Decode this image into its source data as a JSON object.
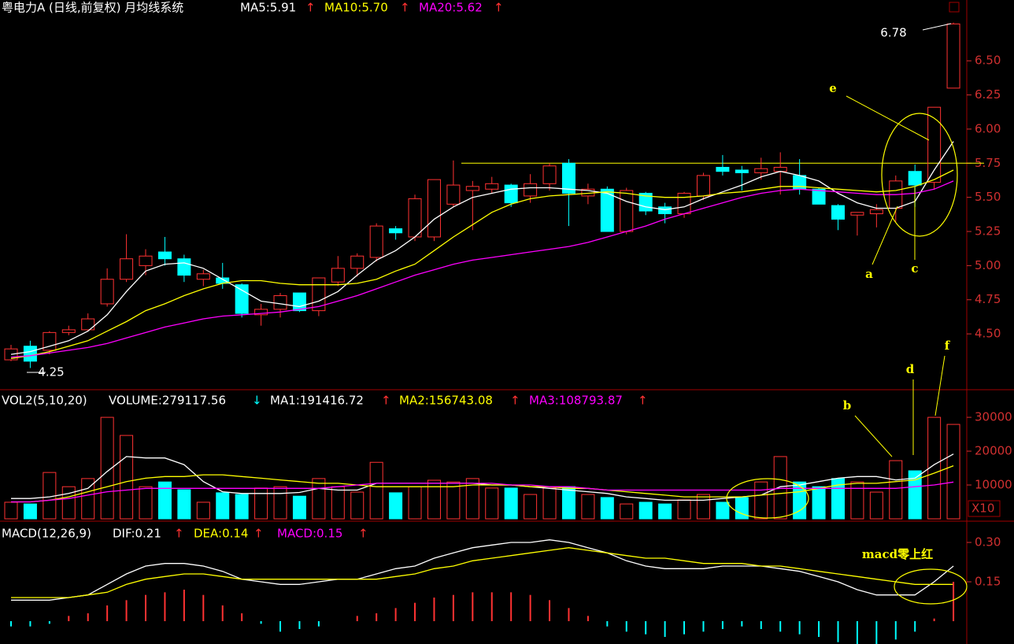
{
  "chart_data": [
    {
      "type": "candlestick",
      "title": "粤电力A (日线,前复权) 月均线系统",
      "up_color": "#ff3232",
      "down_color": "#00ffff",
      "open": [
        4.31,
        4.41,
        4.38,
        4.51,
        4.53,
        4.72,
        4.9,
        5.0,
        5.1,
        5.05,
        4.9,
        4.91,
        4.86,
        4.64,
        4.68,
        4.8,
        4.67,
        4.88,
        4.98,
        5.06,
        5.27,
        5.21,
        5.21,
        5.45,
        5.55,
        5.56,
        5.59,
        5.51,
        5.6,
        5.75,
        5.51,
        5.56,
        5.25,
        5.53,
        5.43,
        5.38,
        5.51,
        5.72,
        5.7,
        5.68,
        5.69,
        5.66,
        5.56,
        5.44,
        5.37,
        5.38,
        5.42,
        5.69,
        5.61,
        6.3
      ],
      "high": [
        4.42,
        4.45,
        4.52,
        4.56,
        4.65,
        4.98,
        5.23,
        5.12,
        5.21,
        5.08,
        4.97,
        5.02,
        4.87,
        4.72,
        4.8,
        4.8,
        4.91,
        5.07,
        5.09,
        5.31,
        5.29,
        5.52,
        5.63,
        5.77,
        5.62,
        5.65,
        5.6,
        5.67,
        5.75,
        5.78,
        5.6,
        5.58,
        5.57,
        5.54,
        5.46,
        5.54,
        5.68,
        5.81,
        5.73,
        5.79,
        5.83,
        5.78,
        5.57,
        5.45,
        5.39,
        5.45,
        5.66,
        5.74,
        6.16,
        6.78
      ],
      "low": [
        4.3,
        4.25,
        4.35,
        4.49,
        4.52,
        4.7,
        4.88,
        4.93,
        5.0,
        4.88,
        4.85,
        4.83,
        4.62,
        4.56,
        4.62,
        4.66,
        4.63,
        4.85,
        4.92,
        5.03,
        5.19,
        5.18,
        5.18,
        5.43,
        5.26,
        5.53,
        5.43,
        5.46,
        5.55,
        5.29,
        5.45,
        5.25,
        5.23,
        5.37,
        5.31,
        5.35,
        5.48,
        5.66,
        5.55,
        5.63,
        5.52,
        5.52,
        5.45,
        5.26,
        5.22,
        5.28,
        5.32,
        5.43,
        5.56,
        6.3
      ],
      "close": [
        4.39,
        4.3,
        4.51,
        4.53,
        4.61,
        4.9,
        5.05,
        5.07,
        5.05,
        4.93,
        4.94,
        4.87,
        4.65,
        4.68,
        4.78,
        4.67,
        4.91,
        4.98,
        5.07,
        5.29,
        5.24,
        5.49,
        5.63,
        5.59,
        5.58,
        5.6,
        5.46,
        5.6,
        5.73,
        5.53,
        5.56,
        5.25,
        5.55,
        5.4,
        5.38,
        5.53,
        5.66,
        5.69,
        5.68,
        5.71,
        5.72,
        5.56,
        5.45,
        5.34,
        5.39,
        5.41,
        5.62,
        5.59,
        6.16,
        6.77
      ],
      "series": [
        {
          "name": "MA5:5.91",
          "trend": "↑",
          "trend_color": "#ff3232",
          "color": "#ffffff",
          "values": [
            4.35,
            4.37,
            4.41,
            4.45,
            4.52,
            4.64,
            4.81,
            4.96,
            5.01,
            5.02,
            4.98,
            4.9,
            4.82,
            4.74,
            4.72,
            4.7,
            4.74,
            4.81,
            4.93,
            5.04,
            5.11,
            5.21,
            5.34,
            5.43,
            5.5,
            5.53,
            5.56,
            5.57,
            5.57,
            5.56,
            5.55,
            5.53,
            5.47,
            5.43,
            5.41,
            5.43,
            5.49,
            5.54,
            5.59,
            5.65,
            5.69,
            5.66,
            5.62,
            5.53,
            5.46,
            5.42,
            5.42,
            5.47,
            5.7,
            5.91
          ]
        },
        {
          "name": "MA10:5.70",
          "trend": "↑",
          "trend_color": "#ff3232",
          "color": "#ffff00",
          "values": [
            4.32,
            4.34,
            4.37,
            4.41,
            4.45,
            4.52,
            4.59,
            4.67,
            4.72,
            4.78,
            4.83,
            4.87,
            4.89,
            4.89,
            4.87,
            4.86,
            4.86,
            4.86,
            4.87,
            4.9,
            4.96,
            5.01,
            5.11,
            5.21,
            5.3,
            5.39,
            5.45,
            5.49,
            5.51,
            5.52,
            5.53,
            5.54,
            5.53,
            5.51,
            5.5,
            5.5,
            5.51,
            5.53,
            5.54,
            5.56,
            5.58,
            5.58,
            5.57,
            5.56,
            5.55,
            5.54,
            5.55,
            5.58,
            5.63,
            5.7
          ]
        },
        {
          "name": "MA20:5.62",
          "trend": "↑",
          "trend_color": "#ff3232",
          "color": "#ff00ff",
          "values": [
            4.33,
            4.34,
            4.36,
            4.38,
            4.4,
            4.43,
            4.47,
            4.51,
            4.55,
            4.58,
            4.61,
            4.63,
            4.64,
            4.65,
            4.66,
            4.68,
            4.7,
            4.74,
            4.78,
            4.83,
            4.88,
            4.93,
            4.97,
            5.01,
            5.04,
            5.06,
            5.08,
            5.1,
            5.12,
            5.14,
            5.17,
            5.21,
            5.25,
            5.29,
            5.34,
            5.38,
            5.42,
            5.46,
            5.5,
            5.53,
            5.55,
            5.56,
            5.55,
            5.54,
            5.53,
            5.52,
            5.52,
            5.53,
            5.56,
            5.62
          ]
        }
      ],
      "ylim": [
        4.12,
        6.83
      ],
      "yticks": [
        {
          "value": 4.5,
          "label": "4.50"
        },
        {
          "value": 4.75,
          "label": "4.75"
        },
        {
          "value": 5,
          "label": "5.00"
        },
        {
          "value": 5.25,
          "label": "5.25"
        },
        {
          "value": 5.5,
          "label": "5.50"
        },
        {
          "value": 5.75,
          "label": "5.75"
        },
        {
          "value": 6,
          "label": "6.00"
        },
        {
          "value": 6.25,
          "label": "6.25"
        },
        {
          "value": 6.5,
          "label": "6.50"
        }
      ],
      "hline": 5.75,
      "hline_color": "#ffff00",
      "annotations": [
        {
          "text": "6.78"
        },
        {
          "text": "4.25"
        },
        {
          "text": "a"
        },
        {
          "text": "c"
        },
        {
          "text": "e"
        }
      ]
    },
    {
      "type": "bar",
      "title": "VOL2(5,10,20)",
      "series": [
        {
          "name": "VOLUME:279117.56",
          "trend": "↓",
          "trend_color": "#00ffff",
          "style": "bar",
          "values": [
            4900,
            4400,
            13700,
            9500,
            11900,
            30000,
            24650,
            9500,
            10900,
            8600,
            4900,
            7700,
            7200,
            9100,
            9500,
            6700,
            11900,
            9500,
            7900,
            16700,
            7700,
            9500,
            11400,
            10900,
            11900,
            9100,
            9100,
            7200,
            9100,
            9500,
            7200,
            6300,
            4400,
            4900,
            4400,
            5600,
            7200,
            4900,
            6300,
            10900,
            18400,
            10900,
            9500,
            11900,
            10900,
            7900,
            17200,
            14200,
            30000,
            27912
          ]
        },
        {
          "name": "MA1:191416.72",
          "trend": "↑",
          "trend_color": "#ff3232",
          "color": "#ffffff",
          "style": "line",
          "values": [
            6000,
            6000,
            6500,
            7500,
            9000,
            14000,
            18400,
            18000,
            18000,
            16000,
            11000,
            8000,
            7500,
            7500,
            7500,
            7800,
            9000,
            8500,
            8500,
            10500,
            10500,
            10500,
            10500,
            10500,
            10500,
            10000,
            10000,
            9500,
            9000,
            8500,
            8000,
            7500,
            6500,
            6000,
            5500,
            5500,
            5500,
            6000,
            6500,
            7000,
            9500,
            10000,
            11000,
            12000,
            12500,
            12500,
            11500,
            12000,
            16000,
            19142
          ]
        },
        {
          "name": "MA2:156743.08",
          "trend": "↑",
          "trend_color": "#ff3232",
          "color": "#ffff00",
          "style": "line",
          "values": [
            5000,
            5000,
            5500,
            6500,
            8000,
            9500,
            11000,
            12000,
            12500,
            12500,
            13000,
            13000,
            12500,
            12000,
            11500,
            11000,
            10500,
            10500,
            10000,
            9500,
            9500,
            9500,
            9500,
            9500,
            10000,
            10000,
            10000,
            9500,
            9500,
            9000,
            9000,
            8500,
            8000,
            7500,
            7000,
            6500,
            6500,
            6500,
            6500,
            7000,
            7500,
            8000,
            9000,
            10000,
            10500,
            10500,
            11000,
            11500,
            13500,
            15674
          ]
        },
        {
          "name": "MA3:108793.87",
          "trend": "↑",
          "trend_color": "#ff3232",
          "color": "#ff00ff",
          "style": "line",
          "values": [
            5000,
            5000,
            5500,
            6000,
            7000,
            8000,
            8500,
            9000,
            9000,
            9000,
            9000,
            9000,
            9000,
            9000,
            9000,
            9000,
            9000,
            9500,
            10000,
            10500,
            10500,
            10500,
            10500,
            10500,
            10500,
            10500,
            10000,
            10000,
            9500,
            9500,
            9000,
            8500,
            8500,
            8500,
            8500,
            8500,
            8500,
            8500,
            8500,
            8500,
            9000,
            9000,
            9000,
            9000,
            9000,
            9000,
            9000,
            9500,
            10000,
            10879
          ]
        }
      ],
      "ylim": [
        0,
        37700
      ],
      "yticks": [
        10000,
        20000,
        30000
      ],
      "unit_label": "X10",
      "annotations": [
        {
          "text": "b"
        },
        {
          "text": "d"
        },
        {
          "text": "f"
        }
      ]
    },
    {
      "type": "bar",
      "title": "MACD(12,26,9)",
      "series": [
        {
          "name": "DIF:0.21",
          "trend": "↑",
          "trend_color": "#ff3232",
          "color": "#ffffff",
          "style": "line",
          "values": [
            0.08,
            0.08,
            0.08,
            0.09,
            0.1,
            0.14,
            0.18,
            0.21,
            0.22,
            0.22,
            0.21,
            0.19,
            0.16,
            0.15,
            0.14,
            0.14,
            0.15,
            0.16,
            0.16,
            0.18,
            0.2,
            0.21,
            0.24,
            0.26,
            0.28,
            0.29,
            0.3,
            0.3,
            0.31,
            0.3,
            0.28,
            0.26,
            0.23,
            0.21,
            0.2,
            0.2,
            0.2,
            0.21,
            0.21,
            0.21,
            0.2,
            0.19,
            0.17,
            0.15,
            0.12,
            0.1,
            0.1,
            0.1,
            0.15,
            0.21
          ]
        },
        {
          "name": "DEA:0.14",
          "trend": "↑",
          "trend_color": "#ff3232",
          "color": "#ffff00",
          "style": "line",
          "values": [
            0.09,
            0.09,
            0.09,
            0.09,
            0.1,
            0.11,
            0.14,
            0.16,
            0.17,
            0.18,
            0.18,
            0.17,
            0.16,
            0.16,
            0.16,
            0.16,
            0.16,
            0.16,
            0.16,
            0.16,
            0.17,
            0.18,
            0.2,
            0.21,
            0.23,
            0.24,
            0.25,
            0.26,
            0.27,
            0.28,
            0.27,
            0.26,
            0.25,
            0.24,
            0.24,
            0.23,
            0.22,
            0.22,
            0.22,
            0.21,
            0.21,
            0.2,
            0.19,
            0.18,
            0.17,
            0.16,
            0.15,
            0.14,
            0.14,
            0.14
          ]
        },
        {
          "name": "MACD:0.15",
          "trend": "↑",
          "trend_color": "#ff3232",
          "color": "#ff00ff",
          "style": "bar",
          "values": [
            -0.02,
            -0.02,
            -0.01,
            0.02,
            0.03,
            0.06,
            0.08,
            0.1,
            0.11,
            0.12,
            0.1,
            0.06,
            0.03,
            -0.01,
            -0.04,
            -0.03,
            -0.02,
            0,
            0.02,
            0.03,
            0.05,
            0.07,
            0.09,
            0.1,
            0.11,
            0.11,
            0.11,
            0.1,
            0.08,
            0.05,
            0.02,
            -0.02,
            -0.04,
            -0.05,
            -0.06,
            -0.05,
            -0.04,
            -0.03,
            -0.02,
            -0.03,
            -0.04,
            -0.05,
            -0.06,
            -0.08,
            -0.09,
            -0.09,
            -0.07,
            -0.04,
            0.01,
            0.15
          ]
        }
      ],
      "ylim": [
        -0.087,
        0.363
      ],
      "yticks": [
        0.15,
        {
          "value": 0.3,
          "label": "0.30"
        }
      ],
      "up_color": "#ff3232",
      "down_color": "#00ffff",
      "annotations": [
        {
          "text": "macd零上红"
        }
      ]
    }
  ]
}
